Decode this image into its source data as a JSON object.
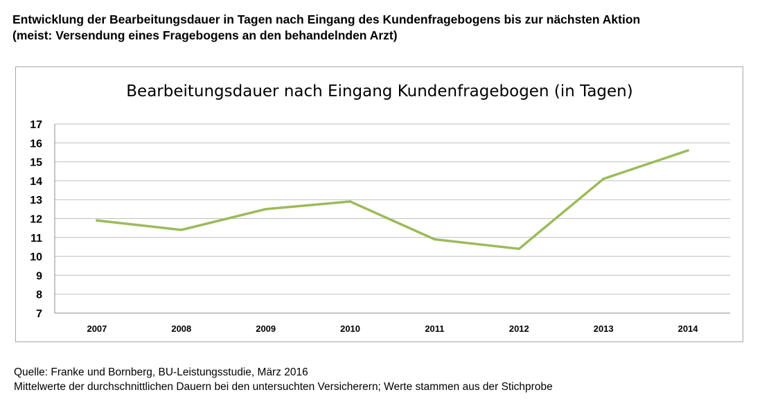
{
  "heading": {
    "line1": "Entwicklung der Bearbeitungsdauer in Tagen nach Eingang des Kundenfragebogens bis zur nächsten Aktion",
    "line2": "(meist: Versendung eines Fragebogens an den behandelnden Arzt)"
  },
  "footer": {
    "source": "Quelle: Franke und Bornberg, BU-Leistungsstudie, März 2016",
    "note": "Mittelwerte der durchschnittlichen Dauern bei den untersuchten Versicherern; Werte stammen aus der Stichprobe"
  },
  "chart_data": {
    "type": "line",
    "title": "Bearbeitungsdauer nach Eingang Kundenfragebogen (in Tagen)",
    "categories": [
      "2007",
      "2008",
      "2009",
      "2010",
      "2011",
      "2012",
      "2013",
      "2014"
    ],
    "series": [
      {
        "name": "Bearbeitungsdauer",
        "values": [
          11.9,
          11.4,
          12.5,
          12.9,
          10.9,
          10.4,
          14.1,
          15.6
        ],
        "color": "#9bbb59"
      }
    ],
    "ylim": [
      7,
      17
    ],
    "yticks": [
      7,
      8,
      9,
      10,
      11,
      12,
      13,
      14,
      15,
      16,
      17
    ],
    "xlabel": "",
    "ylabel": "",
    "grid": true,
    "legend": "none"
  }
}
